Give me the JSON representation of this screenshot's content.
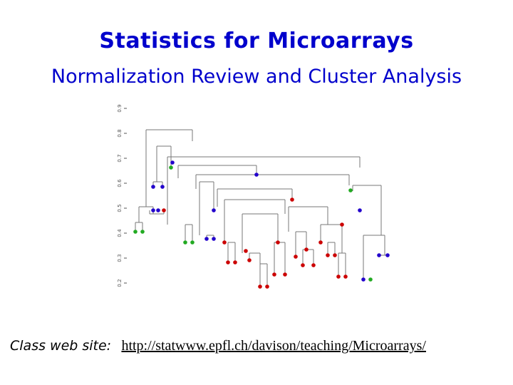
{
  "slide": {
    "title": "Statistics for Microarrays",
    "subtitle": "Normalization Review and Cluster Analysis"
  },
  "figure": {
    "axis_tick_labels": [
      "0.9",
      "0.8",
      "0.7",
      "0.6",
      "0.5",
      "0.4",
      "0.3",
      "0.2"
    ],
    "leaf_colors": {
      "red": "#cc0000",
      "green": "#22aa22",
      "blue": "#2200cc"
    }
  },
  "footer": {
    "label": "Class web site:",
    "url_text": "http://statwww.epfl.ch/davison/teaching/Microarrays/"
  },
  "colors": {
    "title": "#0000cc",
    "tree_lines": "#777777"
  }
}
